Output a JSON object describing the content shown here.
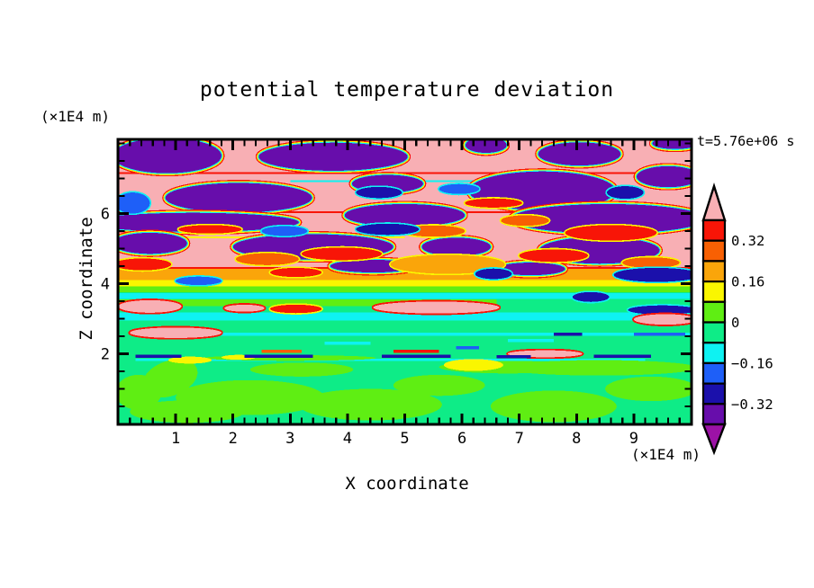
{
  "chart_data": {
    "type": "filled_contour",
    "title": "potential temperature deviation",
    "time_label": "t=5.76e+06 s",
    "xlabel": "X coordinate",
    "zlabel": "Z coordinate",
    "x_unit_label": "(×1E4 m)",
    "z_unit_label": "(×1E4 m)",
    "x_range": [
      0,
      10
    ],
    "z_range": [
      0,
      8.1
    ],
    "x_major_ticks": [
      1,
      2,
      3,
      4,
      5,
      6,
      7,
      8,
      9
    ],
    "z_major_ticks": [
      2,
      4,
      6
    ],
    "x_minor_step": 0.2,
    "z_minor_step": 0.5,
    "palette": {
      "pink": "#F8AFB4",
      "red": "#F81507",
      "orangered": "#F86003",
      "orange": "#FAA50A",
      "yellow": "#FAF600",
      "chartreuse": "#5FEE13",
      "springgreen": "#0EEC87",
      "cyan": "#0EF2F2",
      "blue": "#1E5FF8",
      "navy": "#1B10AB",
      "darkviolet": "#670DAB",
      "purple": "#9C12A6"
    },
    "colorbar": {
      "levels": [
        0.4,
        0.32,
        0.24,
        0.16,
        0.08,
        0,
        -0.08,
        -0.16,
        -0.24,
        -0.32,
        -0.4
      ],
      "segment_colors": [
        "red",
        "orangered",
        "orange",
        "yellow",
        "chartreuse",
        "springgreen",
        "cyan",
        "blue",
        "navy",
        "darkviolet"
      ],
      "over_color": "pink",
      "under_color": "purple",
      "labels": [
        [
          "0.32",
          1
        ],
        [
          "0.16",
          3
        ],
        [
          "0",
          5
        ],
        [
          "−0.16",
          7
        ],
        [
          "−0.32",
          9
        ]
      ]
    },
    "field": {
      "background": "springgreen",
      "pink_top_z": [
        4.46,
        8.25
      ],
      "bands": [
        [
          4.1,
          4.46,
          "orange"
        ],
        [
          3.92,
          4.1,
          "yellow"
        ],
        [
          3.76,
          3.92,
          "chartreuse"
        ],
        [
          3.56,
          3.73,
          "cyan"
        ],
        [
          3.36,
          3.55,
          "chartreuse",
          0,
          6.6
        ],
        [
          2.95,
          3.18,
          "cyan"
        ],
        [
          2.51,
          2.6,
          "cyan",
          1.2,
          10
        ],
        [
          1.79,
          1.86,
          "cyan",
          0.3,
          9.2
        ]
      ],
      "green_blobs": [
        [
          0.9,
          1.3,
          0.5,
          0.5,
          -20
        ],
        [
          2.3,
          0.75,
          1.3,
          0.5,
          0
        ],
        [
          1.2,
          0.35,
          1.0,
          0.32,
          0
        ],
        [
          4.4,
          0.55,
          1.25,
          0.45,
          0
        ],
        [
          5.6,
          1.1,
          0.8,
          0.3,
          0
        ],
        [
          7.6,
          0.5,
          1.1,
          0.45,
          0
        ],
        [
          9.3,
          1.0,
          0.8,
          0.35,
          0
        ],
        [
          3.2,
          1.55,
          0.9,
          0.2,
          0
        ],
        [
          6.8,
          1.62,
          1.2,
          0.18,
          0
        ],
        [
          8.4,
          1.6,
          1.7,
          0.22,
          0
        ],
        [
          0.35,
          0.9,
          0.4,
          0.5,
          0
        ],
        [
          3.0,
          1.88,
          1.5,
          0.08,
          0
        ]
      ],
      "yellow_patches": [
        [
          1.25,
          1.82,
          0.38,
          0.1
        ],
        [
          6.2,
          1.68,
          0.52,
          0.17
        ],
        [
          2.1,
          1.9,
          0.3,
          0.07
        ]
      ],
      "lines": [
        [
          0,
          10,
          7.18,
          "red"
        ],
        [
          3.0,
          6.5,
          6.95,
          "cyan"
        ],
        [
          0,
          10,
          6.06,
          "red"
        ],
        [
          1.0,
          5.0,
          5.35,
          "yellow"
        ],
        [
          0,
          10,
          4.47,
          "red"
        ]
      ],
      "purple_blobs": [
        [
          0.85,
          7.65,
          0.95,
          0.5
        ],
        [
          3.75,
          7.62,
          1.3,
          0.4
        ],
        [
          6.42,
          7.95,
          0.36,
          0.22
        ],
        [
          8.05,
          7.7,
          0.72,
          0.33
        ],
        [
          9.72,
          8.0,
          0.4,
          0.16
        ],
        [
          2.1,
          6.45,
          1.28,
          0.42
        ],
        [
          4.7,
          6.85,
          0.62,
          0.25
        ],
        [
          7.4,
          6.65,
          1.28,
          0.55
        ],
        [
          1.3,
          5.75,
          1.85,
          0.27
        ],
        [
          5.0,
          5.95,
          1.05,
          0.32
        ],
        [
          8.55,
          5.85,
          1.7,
          0.42
        ],
        [
          0.55,
          5.15,
          0.65,
          0.3
        ],
        [
          3.4,
          5.05,
          1.4,
          0.36
        ],
        [
          8.4,
          4.95,
          1.05,
          0.38
        ],
        [
          5.9,
          5.05,
          0.6,
          0.26
        ],
        [
          9.6,
          7.05,
          0.55,
          0.3
        ],
        [
          7.2,
          4.42,
          0.6,
          0.18
        ],
        [
          4.45,
          4.5,
          0.75,
          0.18
        ]
      ],
      "red_blobs": [
        [
          0.42,
          4.55,
          0.5,
          0.17,
          "red"
        ],
        [
          2.6,
          4.7,
          0.55,
          0.17,
          "orangered"
        ],
        [
          3.9,
          4.85,
          0.7,
          0.18,
          "red"
        ],
        [
          5.75,
          4.55,
          1.0,
          0.27,
          "orange"
        ],
        [
          7.6,
          4.8,
          0.6,
          0.18,
          "red"
        ],
        [
          8.6,
          5.45,
          0.8,
          0.22,
          "red"
        ],
        [
          7.1,
          5.8,
          0.42,
          0.15,
          "orangered"
        ],
        [
          3.1,
          4.32,
          0.45,
          0.13,
          "red"
        ],
        [
          1.6,
          5.55,
          0.55,
          0.12,
          "red"
        ],
        [
          5.5,
          5.5,
          0.55,
          0.16,
          "orangered"
        ],
        [
          6.55,
          6.3,
          0.5,
          0.13,
          "red"
        ],
        [
          9.3,
          4.6,
          0.5,
          0.15,
          "orangered"
        ],
        [
          3.1,
          3.28,
          0.45,
          0.12,
          "red"
        ]
      ],
      "navy_blobs": [
        [
          0.25,
          6.3,
          0.3,
          0.3,
          "blue"
        ],
        [
          4.55,
          6.6,
          0.4,
          0.16,
          "navy"
        ],
        [
          5.95,
          6.7,
          0.35,
          0.14,
          "blue"
        ],
        [
          8.85,
          6.6,
          0.32,
          0.18,
          "navy"
        ],
        [
          4.7,
          5.55,
          0.55,
          0.16,
          "navy"
        ],
        [
          6.55,
          4.28,
          0.32,
          0.15,
          "navy"
        ],
        [
          1.4,
          4.08,
          0.4,
          0.12,
          "blue"
        ],
        [
          8.25,
          3.62,
          0.32,
          0.14,
          "navy"
        ],
        [
          9.4,
          4.25,
          0.75,
          0.2,
          "navy"
        ],
        [
          2.9,
          5.5,
          0.4,
          0.14,
          "blue"
        ],
        [
          9.5,
          3.25,
          0.6,
          0.13,
          "navy"
        ]
      ],
      "pink_patches": [
        [
          0.55,
          3.35,
          0.55,
          0.18
        ],
        [
          1.0,
          2.6,
          0.8,
          0.15
        ],
        [
          5.55,
          3.32,
          1.1,
          0.17
        ],
        [
          9.55,
          2.98,
          0.55,
          0.15
        ],
        [
          7.45,
          2.0,
          0.65,
          0.1
        ],
        [
          2.2,
          3.3,
          0.35,
          0.1
        ]
      ],
      "dashes": [
        [
          0.3,
          1.1,
          1.98,
          "navy"
        ],
        [
          2.2,
          3.4,
          1.97,
          "navy"
        ],
        [
          4.6,
          5.8,
          1.98,
          "navy"
        ],
        [
          6.6,
          7.2,
          1.96,
          "navy"
        ],
        [
          8.3,
          9.3,
          1.98,
          "navy"
        ],
        [
          2.5,
          3.2,
          2.12,
          "orangered"
        ],
        [
          4.8,
          5.6,
          2.12,
          "red"
        ],
        [
          5.9,
          6.3,
          2.22,
          "blue"
        ],
        [
          7.6,
          8.1,
          2.6,
          "navy"
        ],
        [
          9.0,
          9.9,
          2.6,
          "blue"
        ],
        [
          3.6,
          4.4,
          2.35,
          "cyan"
        ],
        [
          6.8,
          7.6,
          2.42,
          "cyan"
        ]
      ]
    }
  }
}
